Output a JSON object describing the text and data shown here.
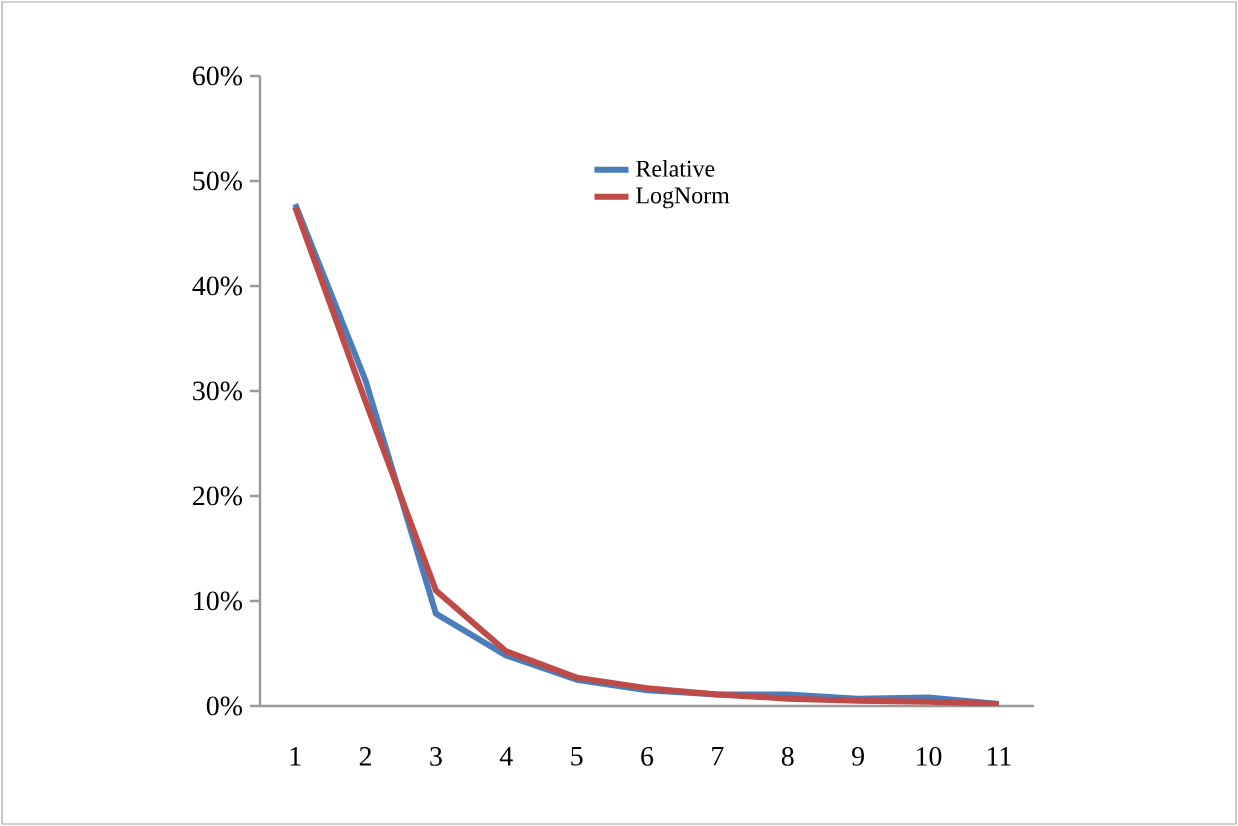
{
  "chart_data": {
    "type": "line",
    "categories": [
      "1",
      "2",
      "3",
      "4",
      "5",
      "6",
      "7",
      "8",
      "9",
      "10",
      "11"
    ],
    "series": [
      {
        "name": "Relative",
        "color": "#4a7ebb",
        "values": [
          47.8,
          31,
          8.8,
          4.8,
          2.5,
          1.5,
          1.1,
          1.1,
          0.7,
          0.8,
          0.2
        ]
      },
      {
        "name": "LogNorm",
        "color": "#be4b48",
        "values": [
          47.5,
          29,
          11,
          5.2,
          2.7,
          1.7,
          1.1,
          0.7,
          0.5,
          0.4,
          0.2
        ]
      }
    ],
    "ylim": [
      0,
      60
    ],
    "yticks": [
      {
        "value": 0,
        "label": "0%"
      },
      {
        "value": 10,
        "label": "10%"
      },
      {
        "value": 20,
        "label": "20%"
      },
      {
        "value": 30,
        "label": "30%"
      },
      {
        "value": 40,
        "label": "40%"
      },
      {
        "value": 50,
        "label": "50%"
      },
      {
        "value": 60,
        "label": "60%"
      }
    ],
    "legend": "top right",
    "grid": false,
    "marker": "none",
    "line_style": "solid"
  }
}
